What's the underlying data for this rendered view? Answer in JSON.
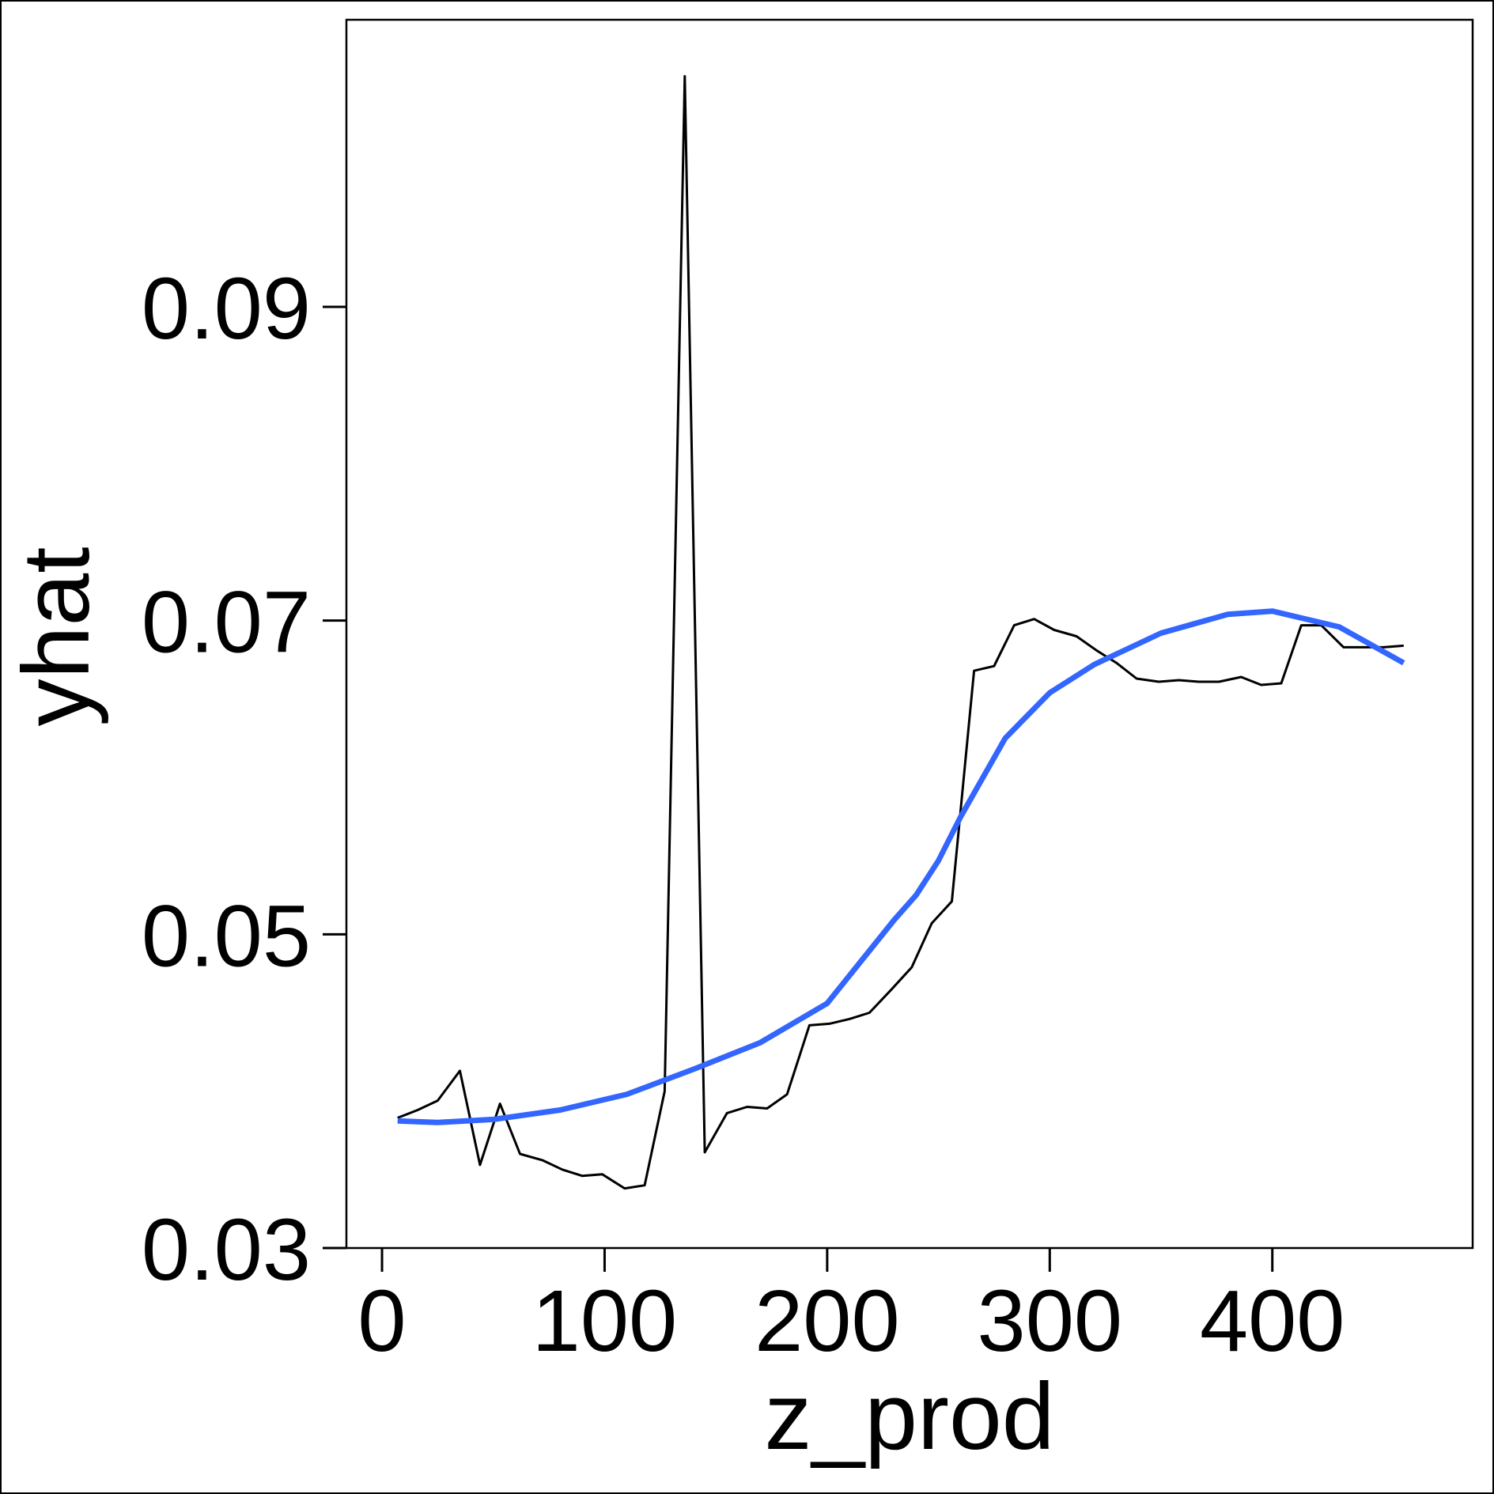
{
  "chart_data": {
    "type": "line",
    "xlabel": "z_prod",
    "ylabel": "yhat",
    "xlim": [
      -16,
      490
    ],
    "ylim": [
      0.03,
      0.1083
    ],
    "xticks": [
      {
        "value": 0,
        "label": "0"
      },
      {
        "value": 100,
        "label": "100"
      },
      {
        "value": 200,
        "label": "200"
      },
      {
        "value": 300,
        "label": "300"
      },
      {
        "value": 400,
        "label": "400"
      }
    ],
    "yticks": [
      {
        "value": 0.03,
        "label": "0.03"
      },
      {
        "value": 0.05,
        "label": "0.05"
      },
      {
        "value": 0.07,
        "label": "0.07"
      },
      {
        "value": 0.09,
        "label": "0.09"
      }
    ],
    "grid": false,
    "legend": "none",
    "series": [
      {
        "color": "#000000",
        "x": [
          7,
          16,
          25,
          35,
          44,
          53,
          62,
          72,
          81,
          90,
          99,
          109,
          118,
          127,
          136,
          145,
          155,
          164,
          173,
          182,
          192,
          201,
          210,
          219,
          229,
          238,
          247,
          256,
          266,
          275,
          284,
          293,
          302,
          312,
          321,
          330,
          339,
          349,
          358,
          367,
          376,
          386,
          395,
          404,
          413,
          422,
          432,
          441,
          450,
          459
        ],
        "y": [
          0.0383,
          0.0388,
          0.0394,
          0.0413,
          0.0353,
          0.0392,
          0.036,
          0.0356,
          0.035,
          0.0346,
          0.0347,
          0.0338,
          0.034,
          0.04,
          0.1047,
          0.0361,
          0.0386,
          0.039,
          0.0389,
          0.0398,
          0.0442,
          0.0443,
          0.0446,
          0.045,
          0.0465,
          0.0479,
          0.0507,
          0.0521,
          0.0668,
          0.0671,
          0.0697,
          0.0701,
          0.0694,
          0.069,
          0.0681,
          0.0673,
          0.0663,
          0.0661,
          0.0662,
          0.0661,
          0.0661,
          0.0664,
          0.0659,
          0.066,
          0.0697,
          0.0697,
          0.0683,
          0.0683,
          0.0683,
          0.0684
        ]
      },
      {
        "color": "#3366FF",
        "x": [
          7,
          25,
          50,
          80,
          110,
          140,
          170,
          200,
          230,
          240,
          250,
          260,
          280,
          300,
          320,
          350,
          380,
          400,
          430,
          459
        ],
        "y": [
          0.0381,
          0.038,
          0.0382,
          0.0388,
          0.0398,
          0.0414,
          0.0431,
          0.0456,
          0.0509,
          0.0525,
          0.0547,
          0.0575,
          0.0625,
          0.0654,
          0.0672,
          0.0692,
          0.0704,
          0.0706,
          0.0696,
          0.0673
        ]
      }
    ]
  }
}
